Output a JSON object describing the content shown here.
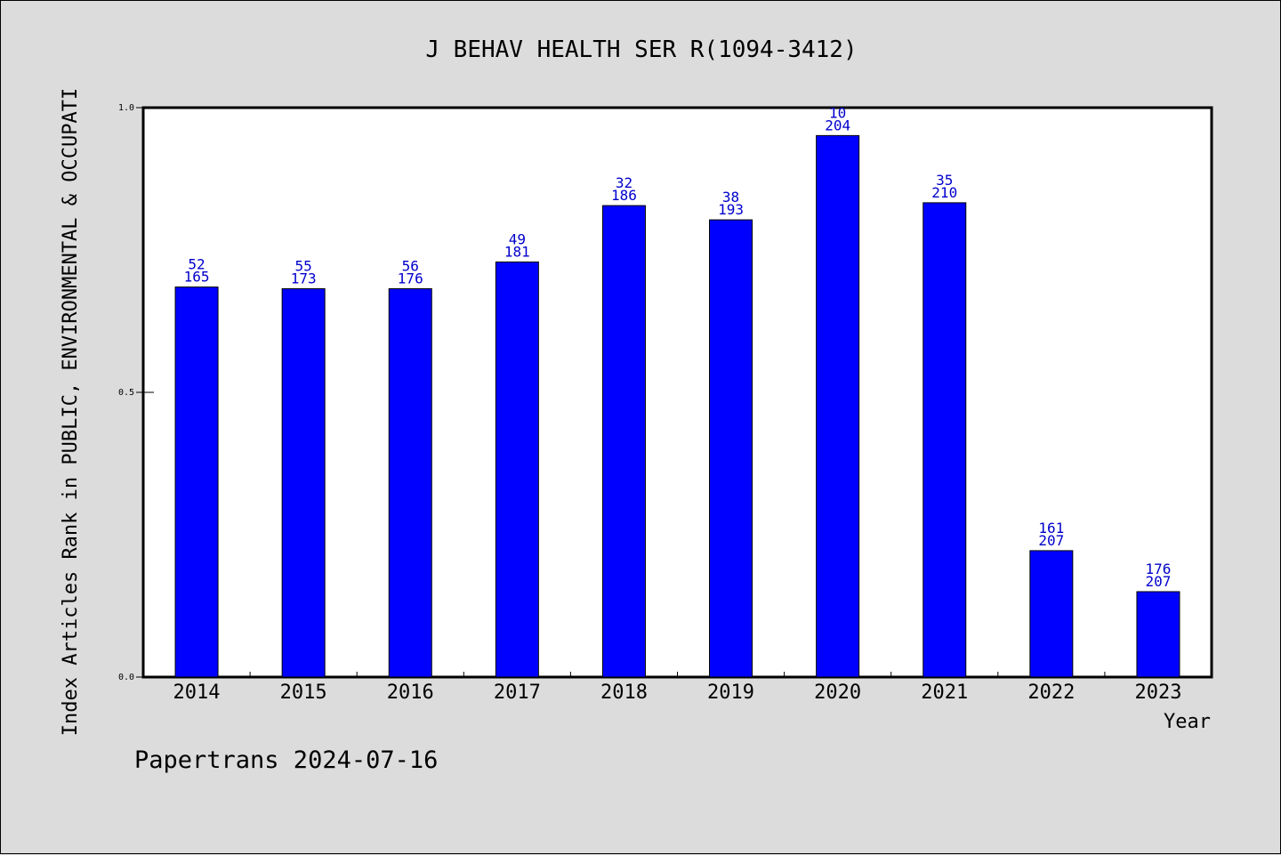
{
  "chart_data": {
    "type": "bar",
    "title": "J BEHAV HEALTH SER R(1094-3412)",
    "xlabel": "Year",
    "ylabel": "Index Articles Rank in PUBLIC, ENVIRONMENTAL & OCCUPATI",
    "ylim": [
      0.0,
      1.0
    ],
    "yticks": [
      "0.0",
      "0.5",
      "1.0"
    ],
    "categories": [
      "2014",
      "2015",
      "2016",
      "2017",
      "2018",
      "2019",
      "2020",
      "2021",
      "2022",
      "2023"
    ],
    "values": [
      0.685,
      0.682,
      0.682,
      0.729,
      0.828,
      0.803,
      0.951,
      0.833,
      0.222,
      0.15
    ],
    "rank_labels": [
      "52",
      "55",
      "56",
      "49",
      "32",
      "38",
      "10",
      "35",
      "161",
      "176"
    ],
    "total_labels": [
      "165",
      "173",
      "176",
      "181",
      "186",
      "193",
      "204",
      "210",
      "207",
      "207"
    ],
    "bar_color": "#0000ff",
    "label_color": "#0000cc",
    "grid": false,
    "legend": "none"
  },
  "footer": "Papertrans 2024-07-16"
}
